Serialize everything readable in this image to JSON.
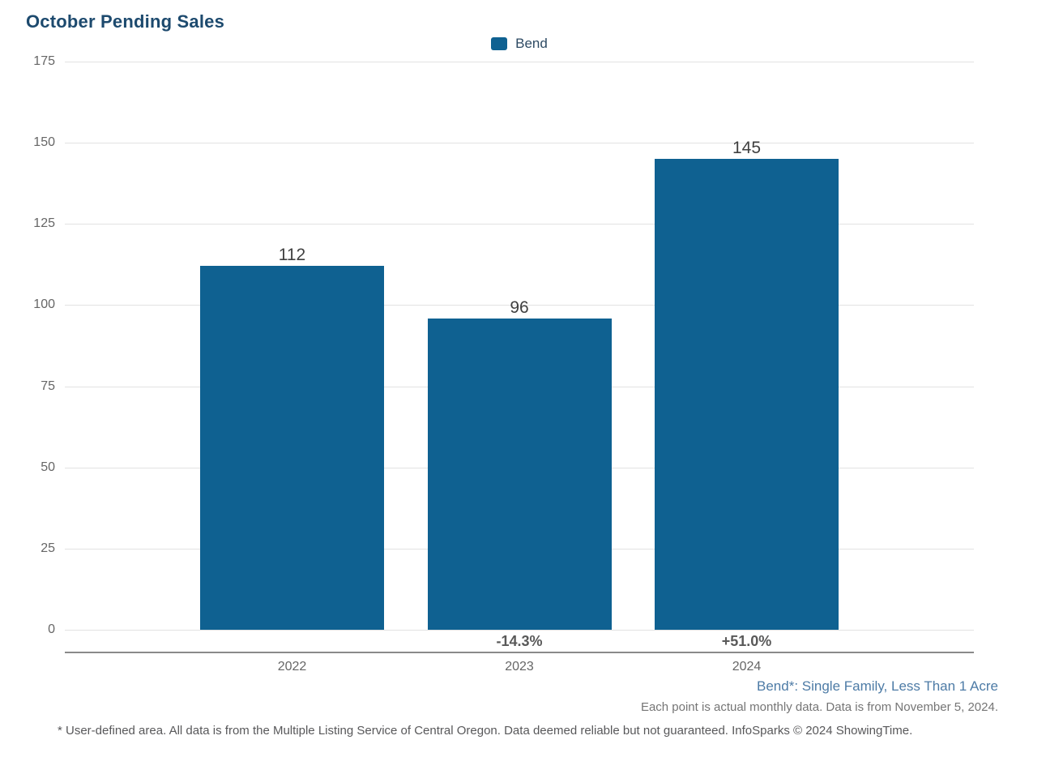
{
  "title": "October Pending Sales",
  "legend": {
    "label": "Bend"
  },
  "chart_data": {
    "type": "bar",
    "title": "October Pending Sales",
    "categories": [
      "2022",
      "2023",
      "2024"
    ],
    "series": [
      {
        "name": "Bend",
        "values": [
          112,
          96,
          145
        ],
        "color": "#0f6191"
      }
    ],
    "value_labels": [
      "112",
      "96",
      "145"
    ],
    "pct_change_labels": [
      "",
      "-14.3%",
      "+51.0%"
    ],
    "y_ticks": [
      0,
      25,
      50,
      75,
      100,
      125,
      150,
      175
    ],
    "ylim": [
      0,
      175
    ],
    "grid": true,
    "legend_position": "top-center"
  },
  "footnotes": {
    "series_definition": "Bend*: Single Family, Less Than 1 Acre",
    "data_note": "Each point is actual monthly data. Data is from November 5, 2024.",
    "disclaimer": "* User-defined area. All data is from the Multiple Listing Service of Central Oregon. Data deemed reliable but not guaranteed. InfoSparks © 2024 ShowingTime."
  },
  "colors": {
    "bar": "#0f6191",
    "title": "#1d4a6e",
    "axis_label": "#666666",
    "value_label": "#404040",
    "pct_label": "#595959",
    "gridline": "#e2e2e2",
    "axis_line": "#8a8a8a",
    "footnote_blue": "#4d7ba6",
    "footnote_gray": "#757575",
    "disclaimer_gray": "#58585a"
  }
}
